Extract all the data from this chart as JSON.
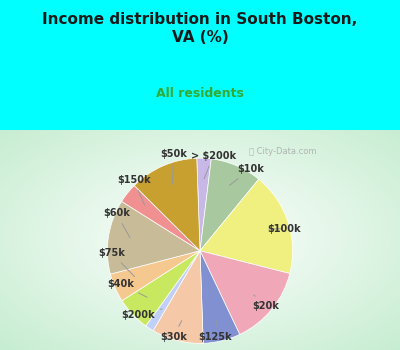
{
  "title": "Income distribution in South Boston,\nVA (%)",
  "subtitle": "All residents",
  "labels": [
    "> $200k",
    "$10k",
    "$100k",
    "$20k",
    "$125k",
    "$30k",
    "$200k",
    "$40k",
    "$75k",
    "$60k",
    "$150k",
    "$50k"
  ],
  "sizes": [
    2.5,
    9.0,
    18.0,
    14.0,
    6.5,
    9.0,
    1.5,
    6.0,
    5.0,
    13.0,
    3.5,
    12.0
  ],
  "colors": [
    "#c8b8e8",
    "#a8c8a0",
    "#f0f080",
    "#f0a8b8",
    "#8090d0",
    "#f5c8a8",
    "#c0d0f8",
    "#c8e860",
    "#f5c890",
    "#c8bc98",
    "#f09090",
    "#c8a030"
  ],
  "background_top": "#00ffff",
  "title_color": "#1a1a1a",
  "subtitle_color": "#33aa33",
  "watermark": "City-Data.com",
  "label_fontsize": 7.0,
  "label_color": "#333333"
}
